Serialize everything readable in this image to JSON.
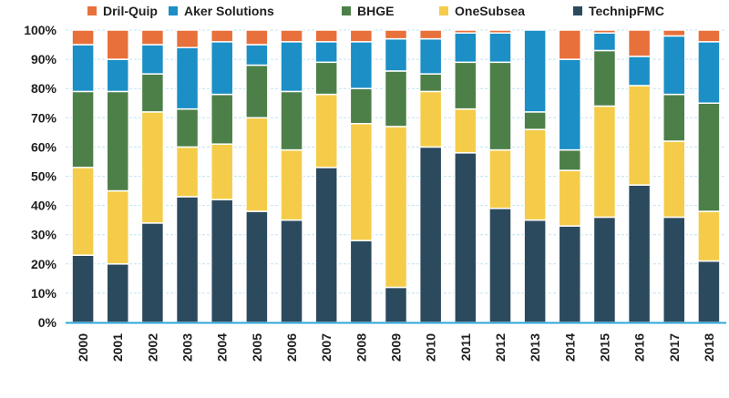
{
  "chart_data": {
    "type": "bar",
    "stacked": true,
    "normalized": true,
    "categories": [
      "2000",
      "2001",
      "2002",
      "2003",
      "2004",
      "2005",
      "2006",
      "2007",
      "2008",
      "2009",
      "2010",
      "2011",
      "2012",
      "2013",
      "2014",
      "2015",
      "2016",
      "2017",
      "2018"
    ],
    "y_ticks": [
      "0%",
      "10%",
      "20%",
      "30%",
      "40%",
      "50%",
      "60%",
      "70%",
      "80%",
      "90%",
      "100%"
    ],
    "ylim": [
      0,
      100
    ],
    "grid": true,
    "legend_position": "top",
    "legend_order": [
      "Dril-Quip",
      "Aker Solutions",
      "BHGE",
      "OneSubsea",
      "TechnipFMC"
    ],
    "series": [
      {
        "name": "TechnipFMC",
        "color": "#2c4a5e",
        "values": [
          23,
          20,
          34,
          43,
          42,
          38,
          35,
          53,
          28,
          12,
          60,
          58,
          39,
          35,
          33,
          36,
          47,
          36,
          21
        ]
      },
      {
        "name": "OneSubsea",
        "color": "#f5cc49",
        "values": [
          30,
          25,
          38,
          17,
          19,
          32,
          24,
          25,
          40,
          55,
          19,
          15,
          20,
          31,
          19,
          38,
          34,
          26,
          17
        ]
      },
      {
        "name": "BHGE",
        "color": "#4d8049",
        "values": [
          26,
          34,
          13,
          13,
          17,
          18,
          20,
          11,
          12,
          19,
          6,
          16,
          30,
          6,
          7,
          19,
          0,
          16,
          37
        ]
      },
      {
        "name": "Aker Solutions",
        "color": "#1b8fc6",
        "values": [
          16,
          11,
          10,
          21,
          18,
          7,
          17,
          7,
          16,
          11,
          12,
          10,
          10,
          28,
          31,
          6,
          10,
          20,
          21
        ]
      },
      {
        "name": "Dril-Quip",
        "color": "#e8703a",
        "values": [
          5,
          10,
          5,
          6,
          4,
          5,
          4,
          4,
          4,
          3,
          3,
          1,
          1,
          0,
          10,
          1,
          9,
          2,
          4
        ]
      }
    ]
  }
}
